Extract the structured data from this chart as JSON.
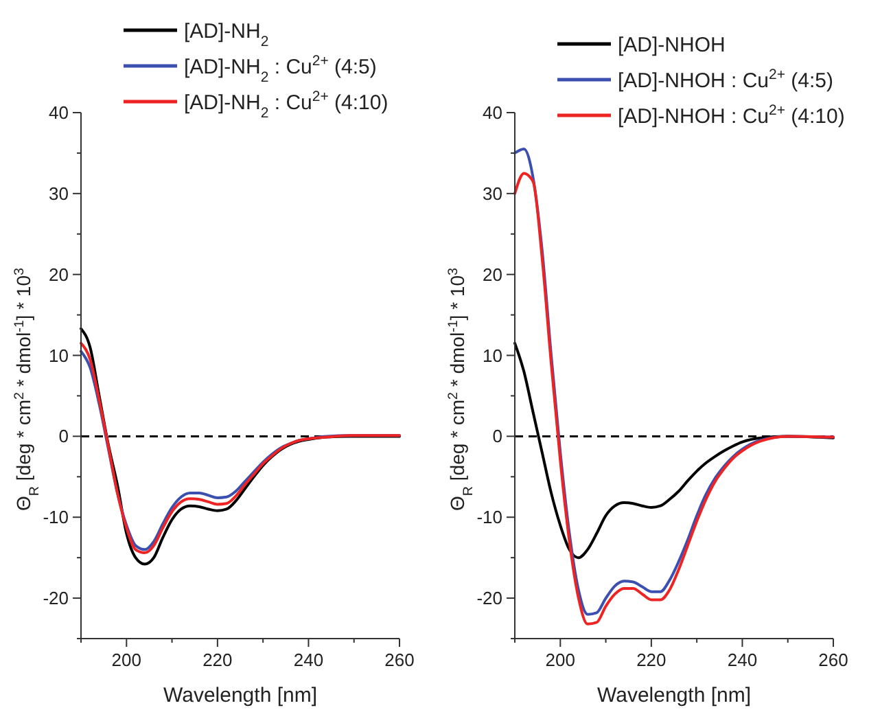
{
  "chart_data": [
    {
      "type": "line",
      "xlabel": "Wavelength [nm]",
      "ylabel": "Θ$_{R}$ [deg * cm$^{2}$ * dmol$^{-1}$] * 10$^{3}$",
      "legend": "top",
      "line_style": "solid",
      "marker": "none",
      "x": [
        190,
        192,
        194,
        196,
        198,
        200,
        202,
        204,
        206,
        208,
        210,
        212,
        214,
        216,
        218,
        220,
        222,
        224,
        226,
        228,
        230,
        232,
        234,
        236,
        238,
        240,
        244,
        250,
        260
      ],
      "xlim": [
        190,
        260
      ],
      "xticks": [
        {
          "value": 190,
          "label": null
        },
        200,
        {
          "value": 210,
          "label": null
        },
        220,
        {
          "value": 230,
          "label": null
        },
        240,
        {
          "value": 250,
          "label": null
        },
        260
      ],
      "ylim": [
        -25,
        40
      ],
      "yticks": [
        {
          "value": -25,
          "label": null
        },
        -20,
        {
          "value": -15,
          "label": null
        },
        -10,
        {
          "value": -5,
          "label": null
        },
        0,
        {
          "value": 5,
          "label": null
        },
        10,
        {
          "value": 15,
          "label": null
        },
        20,
        {
          "value": 25,
          "label": null
        },
        30,
        {
          "value": 35,
          "label": null
        },
        40
      ],
      "ref_lines": [
        {
          "axis": "y",
          "value": 0,
          "color": "#000000",
          "line_style": "dashed"
        }
      ],
      "series": [
        {
          "name": "[AD]-NH$_{2}$",
          "color": "#000000",
          "values": [
            13.3,
            11,
            5,
            -1,
            -6,
            -12,
            -15,
            -15.8,
            -15,
            -12.5,
            -10.3,
            -9,
            -8.6,
            -8.7,
            -9,
            -9.2,
            -9,
            -8,
            -6.5,
            -5,
            -3.6,
            -2.5,
            -1.6,
            -1,
            -0.6,
            -0.4,
            -0.1,
            0,
            0
          ]
        },
        {
          "name": "[AD]-NH$_{2}$ : Cu$^{2+}$ (4:5)",
          "color": "#3a4fb0",
          "values": [
            10.5,
            8.5,
            4,
            -1.5,
            -7,
            -11,
            -13.5,
            -14,
            -13,
            -10.8,
            -8.8,
            -7.5,
            -7,
            -7,
            -7.3,
            -7.6,
            -7.5,
            -6.8,
            -5.6,
            -4.4,
            -3.2,
            -2.2,
            -1.4,
            -0.9,
            -0.5,
            -0.3,
            0,
            0.1,
            0.1
          ]
        },
        {
          "name": "[AD]-NH$_{2}$ : Cu$^{2+}$ (4:10)",
          "color": "#ee2424",
          "values": [
            11.5,
            9.5,
            4.5,
            -1.2,
            -7,
            -11.3,
            -14,
            -14.4,
            -13.5,
            -11.3,
            -9.3,
            -8.1,
            -7.7,
            -7.8,
            -8.1,
            -8.4,
            -8.3,
            -7.4,
            -6,
            -4.7,
            -3.4,
            -2.4,
            -1.5,
            -0.9,
            -0.5,
            -0.3,
            -0.1,
            0.1,
            0.1
          ]
        }
      ]
    },
    {
      "type": "line",
      "xlabel": "Wavelength [nm]",
      "ylabel": "Θ$_{R}$ [deg * cm$^{2}$ * dmol$^{-1}$] * 10$^{3}$",
      "legend": "top",
      "line_style": "solid",
      "marker": "none",
      "x": [
        190,
        192,
        194,
        196,
        198,
        200,
        202,
        204,
        206,
        208,
        210,
        212,
        214,
        216,
        218,
        220,
        222,
        224,
        226,
        228,
        230,
        232,
        234,
        236,
        238,
        240,
        244,
        250,
        260
      ],
      "xlim": [
        190,
        260
      ],
      "xticks": [
        {
          "value": 190,
          "label": null
        },
        200,
        {
          "value": 210,
          "label": null
        },
        220,
        {
          "value": 230,
          "label": null
        },
        240,
        {
          "value": 250,
          "label": null
        },
        260
      ],
      "ylim": [
        -25,
        40
      ],
      "yticks": [
        {
          "value": -25,
          "label": null
        },
        -20,
        {
          "value": -15,
          "label": null
        },
        -10,
        {
          "value": -5,
          "label": null
        },
        0,
        {
          "value": 5,
          "label": null
        },
        10,
        {
          "value": 15,
          "label": null
        },
        20,
        {
          "value": 25,
          "label": null
        },
        30,
        {
          "value": 35,
          "label": null
        },
        40
      ],
      "ref_lines": [
        {
          "axis": "y",
          "value": 0,
          "color": "#000000",
          "line_style": "dashed"
        }
      ],
      "series": [
        {
          "name": "[AD]-NHOH",
          "color": "#000000",
          "values": [
            11.5,
            8,
            3,
            -2,
            -7,
            -11,
            -14,
            -15,
            -14,
            -12,
            -9.8,
            -8.6,
            -8.2,
            -8.3,
            -8.6,
            -8.8,
            -8.6,
            -7.8,
            -6.8,
            -5.5,
            -4.3,
            -3.3,
            -2.5,
            -1.8,
            -1.2,
            -0.7,
            -0.2,
            0,
            -0.2
          ]
        },
        {
          "name": "[AD]-NHOH : Cu$^{2+}$ (4:5)",
          "color": "#3a4fb0",
          "values": [
            35,
            35.5,
            32,
            23,
            10,
            -2,
            -12,
            -19,
            -22,
            -21.8,
            -20,
            -18.5,
            -17.9,
            -18,
            -18.6,
            -19.2,
            -19.2,
            -17.8,
            -15.5,
            -12.8,
            -9.8,
            -7.2,
            -5.2,
            -3.7,
            -2.5,
            -1.6,
            -0.5,
            0,
            -0.1
          ]
        },
        {
          "name": "[AD]-NHOH : Cu$^{2+}$ (4:10)",
          "color": "#ee2424",
          "values": [
            30,
            32.5,
            31.5,
            22,
            9,
            -3,
            -13,
            -20,
            -23.2,
            -23,
            -21,
            -19.5,
            -18.8,
            -18.8,
            -19.5,
            -20.2,
            -20.2,
            -19,
            -16.5,
            -13.5,
            -10.5,
            -7.8,
            -5.6,
            -4,
            -2.7,
            -1.8,
            -0.6,
            0,
            -0.1
          ]
        }
      ]
    }
  ]
}
